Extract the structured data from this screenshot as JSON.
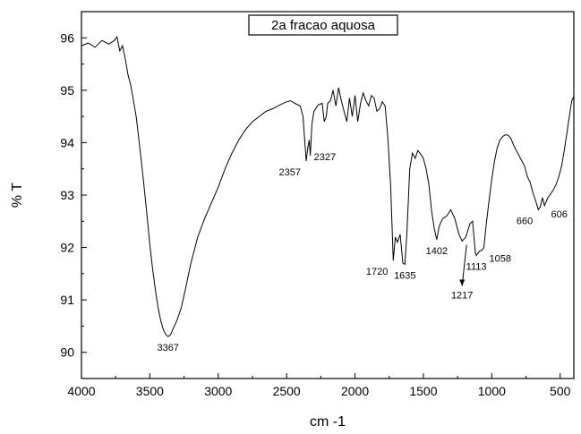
{
  "chart_data": {
    "type": "line",
    "title": "2a fracao aquosa",
    "xlabel": "cm -1",
    "ylabel": "% T",
    "xlim": [
      4000,
      400
    ],
    "ylim": [
      89.5,
      96.5
    ],
    "x_reversed": true,
    "xticks": [
      4000,
      3500,
      3000,
      2500,
      2000,
      1500,
      1000,
      500
    ],
    "yticks": [
      90,
      91,
      92,
      93,
      94,
      95,
      96
    ],
    "grid": false,
    "legend": "none",
    "line_color": "#000000",
    "series": [
      {
        "points": [
          [
            4000,
            95.85
          ],
          [
            3950,
            95.9
          ],
          [
            3900,
            95.82
          ],
          [
            3850,
            95.95
          ],
          [
            3800,
            95.88
          ],
          [
            3760,
            95.95
          ],
          [
            3740,
            96.02
          ],
          [
            3720,
            95.75
          ],
          [
            3700,
            95.85
          ],
          [
            3680,
            95.6
          ],
          [
            3660,
            95.3
          ],
          [
            3640,
            95.1
          ],
          [
            3620,
            94.8
          ],
          [
            3600,
            94.5
          ],
          [
            3580,
            94.05
          ],
          [
            3560,
            93.6
          ],
          [
            3540,
            93.1
          ],
          [
            3520,
            92.6
          ],
          [
            3500,
            92.05
          ],
          [
            3480,
            91.6
          ],
          [
            3460,
            91.2
          ],
          [
            3440,
            90.85
          ],
          [
            3420,
            90.6
          ],
          [
            3400,
            90.42
          ],
          [
            3380,
            90.33
          ],
          [
            3367,
            90.3
          ],
          [
            3350,
            90.33
          ],
          [
            3330,
            90.45
          ],
          [
            3300,
            90.62
          ],
          [
            3270,
            90.85
          ],
          [
            3240,
            91.2
          ],
          [
            3200,
            91.7
          ],
          [
            3150,
            92.2
          ],
          [
            3100,
            92.55
          ],
          [
            3050,
            92.85
          ],
          [
            3000,
            93.15
          ],
          [
            2950,
            93.5
          ],
          [
            2900,
            93.8
          ],
          [
            2850,
            94.05
          ],
          [
            2800,
            94.25
          ],
          [
            2750,
            94.4
          ],
          [
            2700,
            94.5
          ],
          [
            2650,
            94.6
          ],
          [
            2600,
            94.65
          ],
          [
            2550,
            94.72
          ],
          [
            2500,
            94.78
          ],
          [
            2470,
            94.8
          ],
          [
            2440,
            94.75
          ],
          [
            2400,
            94.7
          ],
          [
            2380,
            94.5
          ],
          [
            2357,
            93.65
          ],
          [
            2345,
            93.9
          ],
          [
            2335,
            94.05
          ],
          [
            2327,
            93.75
          ],
          [
            2315,
            94.35
          ],
          [
            2300,
            94.6
          ],
          [
            2270,
            94.72
          ],
          [
            2240,
            94.75
          ],
          [
            2225,
            94.4
          ],
          [
            2210,
            94.5
          ],
          [
            2200,
            94.75
          ],
          [
            2180,
            94.8
          ],
          [
            2160,
            95.0
          ],
          [
            2140,
            94.7
          ],
          [
            2120,
            95.05
          ],
          [
            2100,
            94.8
          ],
          [
            2080,
            94.6
          ],
          [
            2060,
            94.4
          ],
          [
            2040,
            94.85
          ],
          [
            2020,
            94.5
          ],
          [
            2000,
            94.9
          ],
          [
            1980,
            94.4
          ],
          [
            1960,
            94.75
          ],
          [
            1940,
            94.95
          ],
          [
            1920,
            94.8
          ],
          [
            1900,
            94.7
          ],
          [
            1880,
            94.9
          ],
          [
            1860,
            94.85
          ],
          [
            1840,
            94.6
          ],
          [
            1820,
            94.65
          ],
          [
            1800,
            94.78
          ],
          [
            1780,
            94.7
          ],
          [
            1760,
            94.1
          ],
          [
            1740,
            93.2
          ],
          [
            1720,
            91.75
          ],
          [
            1705,
            92.2
          ],
          [
            1690,
            92.1
          ],
          [
            1670,
            92.25
          ],
          [
            1650,
            91.7
          ],
          [
            1635,
            91.68
          ],
          [
            1620,
            92.3
          ],
          [
            1600,
            93.5
          ],
          [
            1580,
            93.8
          ],
          [
            1560,
            93.7
          ],
          [
            1540,
            93.85
          ],
          [
            1520,
            93.78
          ],
          [
            1500,
            93.7
          ],
          [
            1480,
            93.5
          ],
          [
            1460,
            93.2
          ],
          [
            1440,
            92.7
          ],
          [
            1420,
            92.35
          ],
          [
            1402,
            92.15
          ],
          [
            1385,
            92.4
          ],
          [
            1360,
            92.55
          ],
          [
            1330,
            92.6
          ],
          [
            1300,
            92.72
          ],
          [
            1270,
            92.55
          ],
          [
            1240,
            92.25
          ],
          [
            1217,
            92.12
          ],
          [
            1190,
            92.2
          ],
          [
            1160,
            92.45
          ],
          [
            1140,
            92.5
          ],
          [
            1120,
            91.9
          ],
          [
            1113,
            91.85
          ],
          [
            1090,
            91.93
          ],
          [
            1070,
            91.95
          ],
          [
            1058,
            92.0
          ],
          [
            1040,
            92.45
          ],
          [
            1020,
            92.9
          ],
          [
            1000,
            93.3
          ],
          [
            980,
            93.65
          ],
          [
            960,
            93.9
          ],
          [
            940,
            94.05
          ],
          [
            920,
            94.12
          ],
          [
            900,
            94.15
          ],
          [
            880,
            94.14
          ],
          [
            860,
            94.08
          ],
          [
            840,
            93.95
          ],
          [
            820,
            93.85
          ],
          [
            800,
            93.75
          ],
          [
            780,
            93.65
          ],
          [
            760,
            93.55
          ],
          [
            740,
            93.35
          ],
          [
            720,
            93.25
          ],
          [
            700,
            93.05
          ],
          [
            680,
            92.9
          ],
          [
            660,
            92.72
          ],
          [
            645,
            92.78
          ],
          [
            630,
            92.95
          ],
          [
            615,
            92.8
          ],
          [
            606,
            92.85
          ],
          [
            590,
            92.95
          ],
          [
            570,
            93.02
          ],
          [
            550,
            93.1
          ],
          [
            530,
            93.2
          ],
          [
            510,
            93.35
          ],
          [
            490,
            93.55
          ],
          [
            470,
            93.85
          ],
          [
            450,
            94.2
          ],
          [
            430,
            94.55
          ],
          [
            415,
            94.8
          ],
          [
            400,
            94.88
          ]
        ]
      }
    ],
    "annotations": [
      {
        "text": "3367",
        "x": 3367,
        "y": 90.3,
        "pos": "below"
      },
      {
        "text": "2357",
        "x": 2357,
        "y": 93.65,
        "pos": "below-left"
      },
      {
        "text": "2327",
        "x": 2327,
        "y": 93.75,
        "pos": "right"
      },
      {
        "text": "1720",
        "x": 1720,
        "y": 91.75,
        "pos": "below-left"
      },
      {
        "text": "1635",
        "x": 1635,
        "y": 91.68,
        "pos": "below"
      },
      {
        "text": "1402",
        "x": 1402,
        "y": 92.15,
        "pos": "below"
      },
      {
        "text": "1217",
        "x": 1217,
        "y": 92.12,
        "pos": "arrow-below"
      },
      {
        "text": "1113",
        "x": 1113,
        "y": 91.85,
        "pos": "below"
      },
      {
        "text": "1058",
        "x": 1058,
        "y": 92.0,
        "pos": "below-right"
      },
      {
        "text": "660",
        "x": 660,
        "y": 92.72,
        "pos": "below-left"
      },
      {
        "text": "606",
        "x": 606,
        "y": 92.85,
        "pos": "below-right"
      }
    ]
  }
}
